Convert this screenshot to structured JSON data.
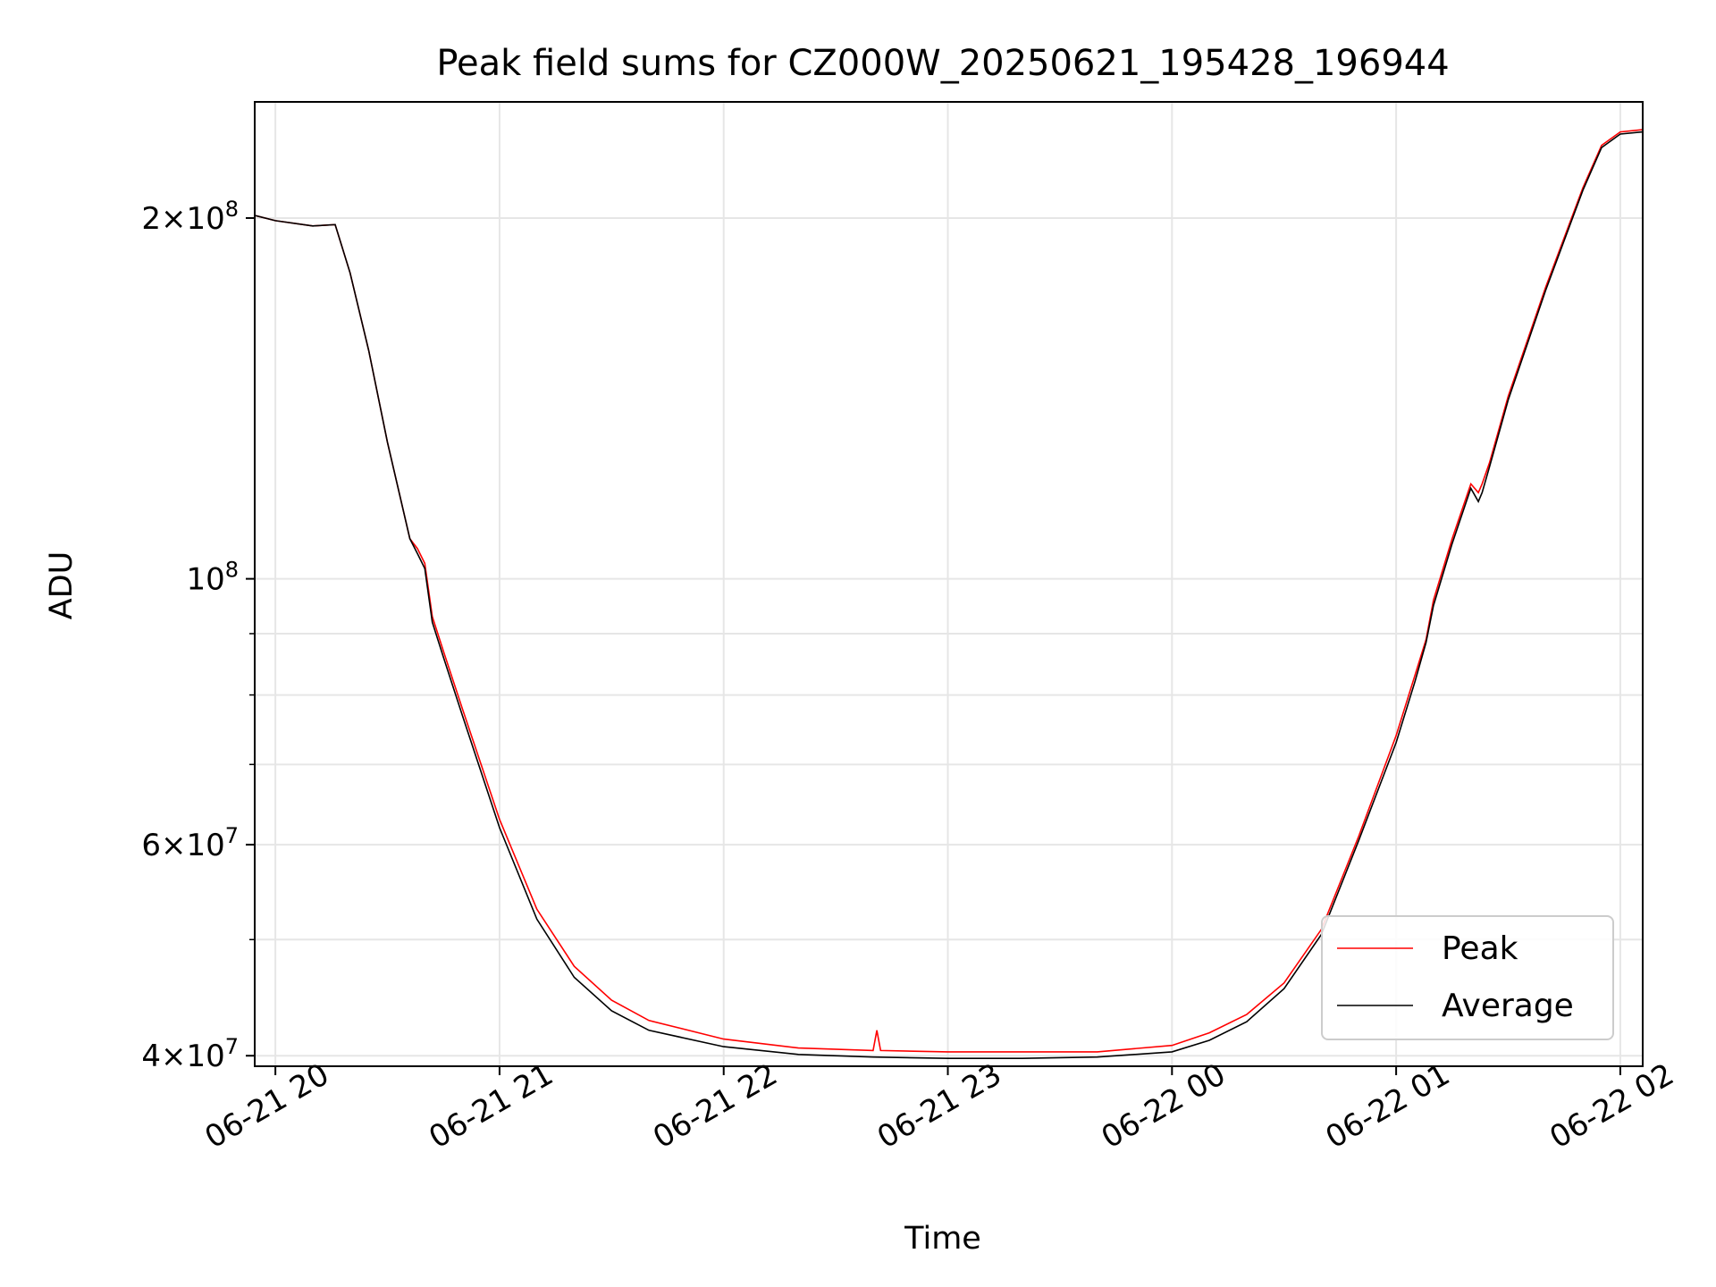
{
  "chart_data": {
    "type": "line",
    "title": "Peak field sums for CZ000W_20250621_195428_196944",
    "xlabel": "Time",
    "ylabel": "ADU",
    "xlim": [
      "2025-06-21T19:54:28",
      "2025-06-22T02:06:00"
    ],
    "ylim": [
      39200000,
      250000000
    ],
    "yscale": "log",
    "grid": true,
    "legend_position": "lower right",
    "x_ticks": [
      "06-21 20",
      "06-21 21",
      "06-21 22",
      "06-21 23",
      "06-22 00",
      "06-22 01",
      "06-22 02"
    ],
    "x_tick_values": [
      "2025-06-21T20:00:00",
      "2025-06-21T21:00:00",
      "2025-06-21T22:00:00",
      "2025-06-21T23:00:00",
      "2025-06-22T00:00:00",
      "2025-06-22T01:00:00",
      "2025-06-22T02:00:00"
    ],
    "y_ticks": [
      {
        "value": 200000000,
        "mantissa": "2",
        "exponent": "8"
      },
      {
        "value": 100000000,
        "mantissa": "",
        "exponent": "8"
      },
      {
        "value": 60000000,
        "mantissa": "6",
        "exponent": "7"
      },
      {
        "value": 40000000,
        "mantissa": "4",
        "exponent": "7"
      }
    ],
    "y_minor_ticks": [
      50000000,
      70000000,
      80000000,
      90000000
    ],
    "series": [
      {
        "name": "Peak",
        "color": "#ff0000",
        "x": [
          "2025-06-21T19:54:28",
          "2025-06-21T20:00:00",
          "2025-06-21T20:10:00",
          "2025-06-21T20:16:00",
          "2025-06-21T20:20:00",
          "2025-06-21T20:25:00",
          "2025-06-21T20:30:00",
          "2025-06-21T20:36:00",
          "2025-06-21T20:38:00",
          "2025-06-21T20:40:00",
          "2025-06-21T20:42:00",
          "2025-06-21T20:45:00",
          "2025-06-21T20:50:00",
          "2025-06-21T21:00:00",
          "2025-06-21T21:10:00",
          "2025-06-21T21:20:00",
          "2025-06-21T21:30:00",
          "2025-06-21T21:40:00",
          "2025-06-21T22:00:00",
          "2025-06-21T22:20:00",
          "2025-06-21T22:40:00",
          "2025-06-21T22:41:00",
          "2025-06-21T22:42:00",
          "2025-06-21T23:00:00",
          "2025-06-21T23:20:00",
          "2025-06-21T23:40:00",
          "2025-06-22T00:00:00",
          "2025-06-22T00:10:00",
          "2025-06-22T00:20:00",
          "2025-06-22T00:30:00",
          "2025-06-22T00:40:00",
          "2025-06-22T00:50:00",
          "2025-06-22T01:00:00",
          "2025-06-22T01:05:00",
          "2025-06-22T01:08:00",
          "2025-06-22T01:10:00",
          "2025-06-22T01:15:00",
          "2025-06-22T01:20:00",
          "2025-06-22T01:22:00",
          "2025-06-22T01:23:00",
          "2025-06-22T01:25:00",
          "2025-06-22T01:30:00",
          "2025-06-22T01:40:00",
          "2025-06-22T01:50:00",
          "2025-06-22T01:55:00",
          "2025-06-22T02:00:00",
          "2025-06-22T02:06:00"
        ],
        "y": [
          201000000,
          199000000,
          197000000,
          197500000,
          180000000,
          155000000,
          130000000,
          108000000,
          106000000,
          103000000,
          93000000,
          87000000,
          78000000,
          63000000,
          53000000,
          47500000,
          44500000,
          42800000,
          41300000,
          40600000,
          40400000,
          42000000,
          40400000,
          40300000,
          40300000,
          40300000,
          40800000,
          41800000,
          43300000,
          46000000,
          51000000,
          61000000,
          74000000,
          83000000,
          89000000,
          96000000,
          108000000,
          120000000,
          118000000,
          120000000,
          125000000,
          142000000,
          175000000,
          212000000,
          230000000,
          236000000,
          237000000
        ]
      },
      {
        "name": "Average",
        "color": "#000000",
        "x": [
          "2025-06-21T19:54:28",
          "2025-06-21T20:00:00",
          "2025-06-21T20:10:00",
          "2025-06-21T20:16:00",
          "2025-06-21T20:20:00",
          "2025-06-21T20:25:00",
          "2025-06-21T20:30:00",
          "2025-06-21T20:36:00",
          "2025-06-21T20:38:00",
          "2025-06-21T20:40:00",
          "2025-06-21T20:42:00",
          "2025-06-21T20:45:00",
          "2025-06-21T20:50:00",
          "2025-06-21T21:00:00",
          "2025-06-21T21:10:00",
          "2025-06-21T21:20:00",
          "2025-06-21T21:30:00",
          "2025-06-21T21:40:00",
          "2025-06-21T22:00:00",
          "2025-06-21T22:20:00",
          "2025-06-21T22:40:00",
          "2025-06-21T23:00:00",
          "2025-06-21T23:20:00",
          "2025-06-21T23:40:00",
          "2025-06-22T00:00:00",
          "2025-06-22T00:10:00",
          "2025-06-22T00:20:00",
          "2025-06-22T00:30:00",
          "2025-06-22T00:40:00",
          "2025-06-22T00:50:00",
          "2025-06-22T01:00:00",
          "2025-06-22T01:05:00",
          "2025-06-22T01:08:00",
          "2025-06-22T01:10:00",
          "2025-06-22T01:15:00",
          "2025-06-22T01:20:00",
          "2025-06-22T01:22:00",
          "2025-06-22T01:23:00",
          "2025-06-22T01:25:00",
          "2025-06-22T01:30:00",
          "2025-06-22T01:40:00",
          "2025-06-22T01:50:00",
          "2025-06-22T01:55:00",
          "2025-06-22T02:00:00",
          "2025-06-22T02:06:00"
        ],
        "y": [
          201000000,
          199000000,
          197000000,
          197500000,
          180000000,
          155000000,
          130000000,
          108000000,
          105000000,
          102000000,
          92000000,
          86000000,
          77000000,
          62000000,
          52000000,
          46500000,
          43600000,
          42000000,
          40700000,
          40100000,
          39900000,
          39800000,
          39800000,
          39900000,
          40300000,
          41200000,
          42700000,
          45500000,
          50500000,
          60500000,
          73000000,
          82000000,
          88500000,
          95000000,
          107000000,
          119000000,
          116000000,
          118000000,
          124000000,
          141000000,
          174000000,
          211000000,
          229000000,
          235000000,
          236000000
        ]
      }
    ]
  }
}
